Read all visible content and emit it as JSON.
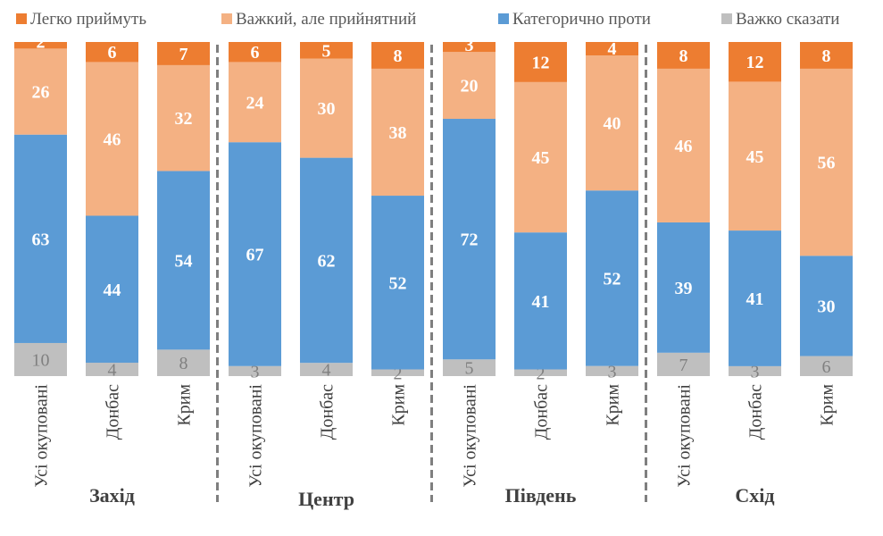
{
  "chart_data": {
    "type": "bar",
    "stacked": true,
    "percent_stacked": true,
    "title": "",
    "xlabel": "",
    "ylabel": "",
    "grid": false,
    "legend_position": "top",
    "groups": [
      {
        "name": "Захід",
        "categories": [
          "Усі окуповані",
          "Донбас",
          "Крим"
        ]
      },
      {
        "name": "Центр",
        "categories": [
          "Усі окуповані",
          "Донбас",
          "Крим"
        ]
      },
      {
        "name": "Південь",
        "categories": [
          "Усі окуповані",
          "Донбас",
          "Крим"
        ]
      },
      {
        "name": "Схід",
        "categories": [
          "Усі окуповані",
          "Донбас",
          "Крим"
        ]
      }
    ],
    "categories": [
      "Усі окуповані",
      "Донбас",
      "Крим",
      "Усі окуповані",
      "Донбас",
      "Крим",
      "Усі окуповані",
      "Донбас",
      "Крим",
      "Усі окуповані",
      "Донбас",
      "Крим"
    ],
    "series": [
      {
        "name": "Важко сказати",
        "color": "#bfbfbf",
        "label_color": "#808080",
        "values": [
          10,
          4,
          8,
          3,
          4,
          2,
          5,
          2,
          3,
          7,
          3,
          6
        ]
      },
      {
        "name": "Категорично проти",
        "color": "#5b9bd5",
        "label_color": "#ffffff",
        "values": [
          63,
          44,
          54,
          67,
          62,
          52,
          72,
          41,
          52,
          39,
          41,
          30
        ]
      },
      {
        "name": "Важкий, але прийнятний",
        "color": "#f4b183",
        "label_color": "#ffffff",
        "values": [
          26,
          46,
          32,
          24,
          30,
          38,
          20,
          45,
          40,
          46,
          45,
          56
        ]
      },
      {
        "name": "Легко приймуть",
        "color": "#ed7d31",
        "label_color": "#ffffff",
        "values": [
          2,
          6,
          7,
          6,
          5,
          8,
          3,
          12,
          4,
          8,
          12,
          8
        ]
      }
    ],
    "legend": [
      "Легко приймуть",
      "Важкий, але прийнятний",
      "Категорично проти",
      "Важко сказати"
    ]
  }
}
